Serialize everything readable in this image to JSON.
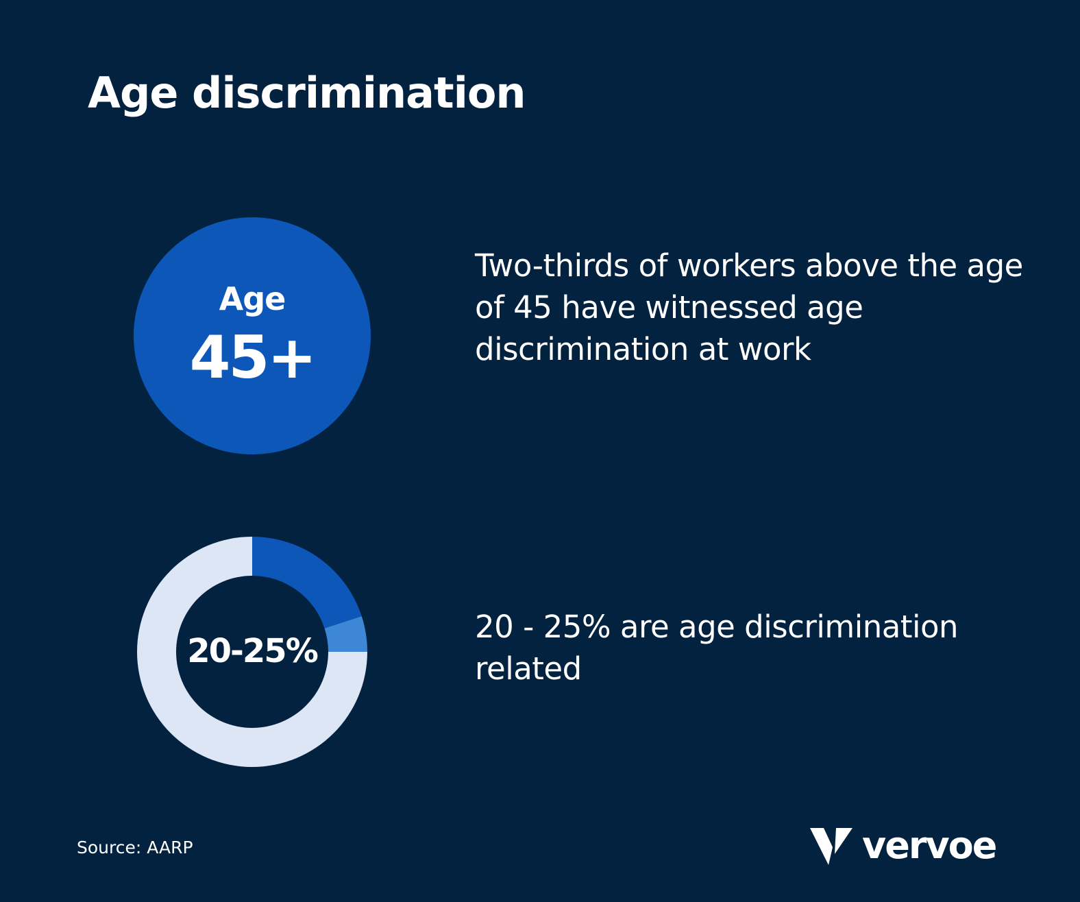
{
  "title": "Age discrimination",
  "stat1": {
    "circle_top": "Age",
    "circle_value": "45+",
    "text": "Two-thirds of workers above the age of 45 have witnessed age discrimination at work"
  },
  "stat2": {
    "text": "20 - 25% are age discrimination related"
  },
  "chart_data": {
    "type": "pie",
    "variant": "donut",
    "center_label": "20-25%",
    "slices": [
      {
        "value": 20,
        "color": "#0D57B8"
      },
      {
        "value": 5,
        "color": "#3D87D6"
      },
      {
        "value": 75,
        "color": "#DCE6F5"
      }
    ],
    "start_angle_deg": 0,
    "direction": "clockwise"
  },
  "source": "Source: AARP",
  "brand": {
    "name": "vervoe",
    "logo_icon": "vervoe-v-logo-icon"
  },
  "colors": {
    "background": "#03223F",
    "accent": "#0D57B8",
    "text": "#FFFFFF"
  }
}
